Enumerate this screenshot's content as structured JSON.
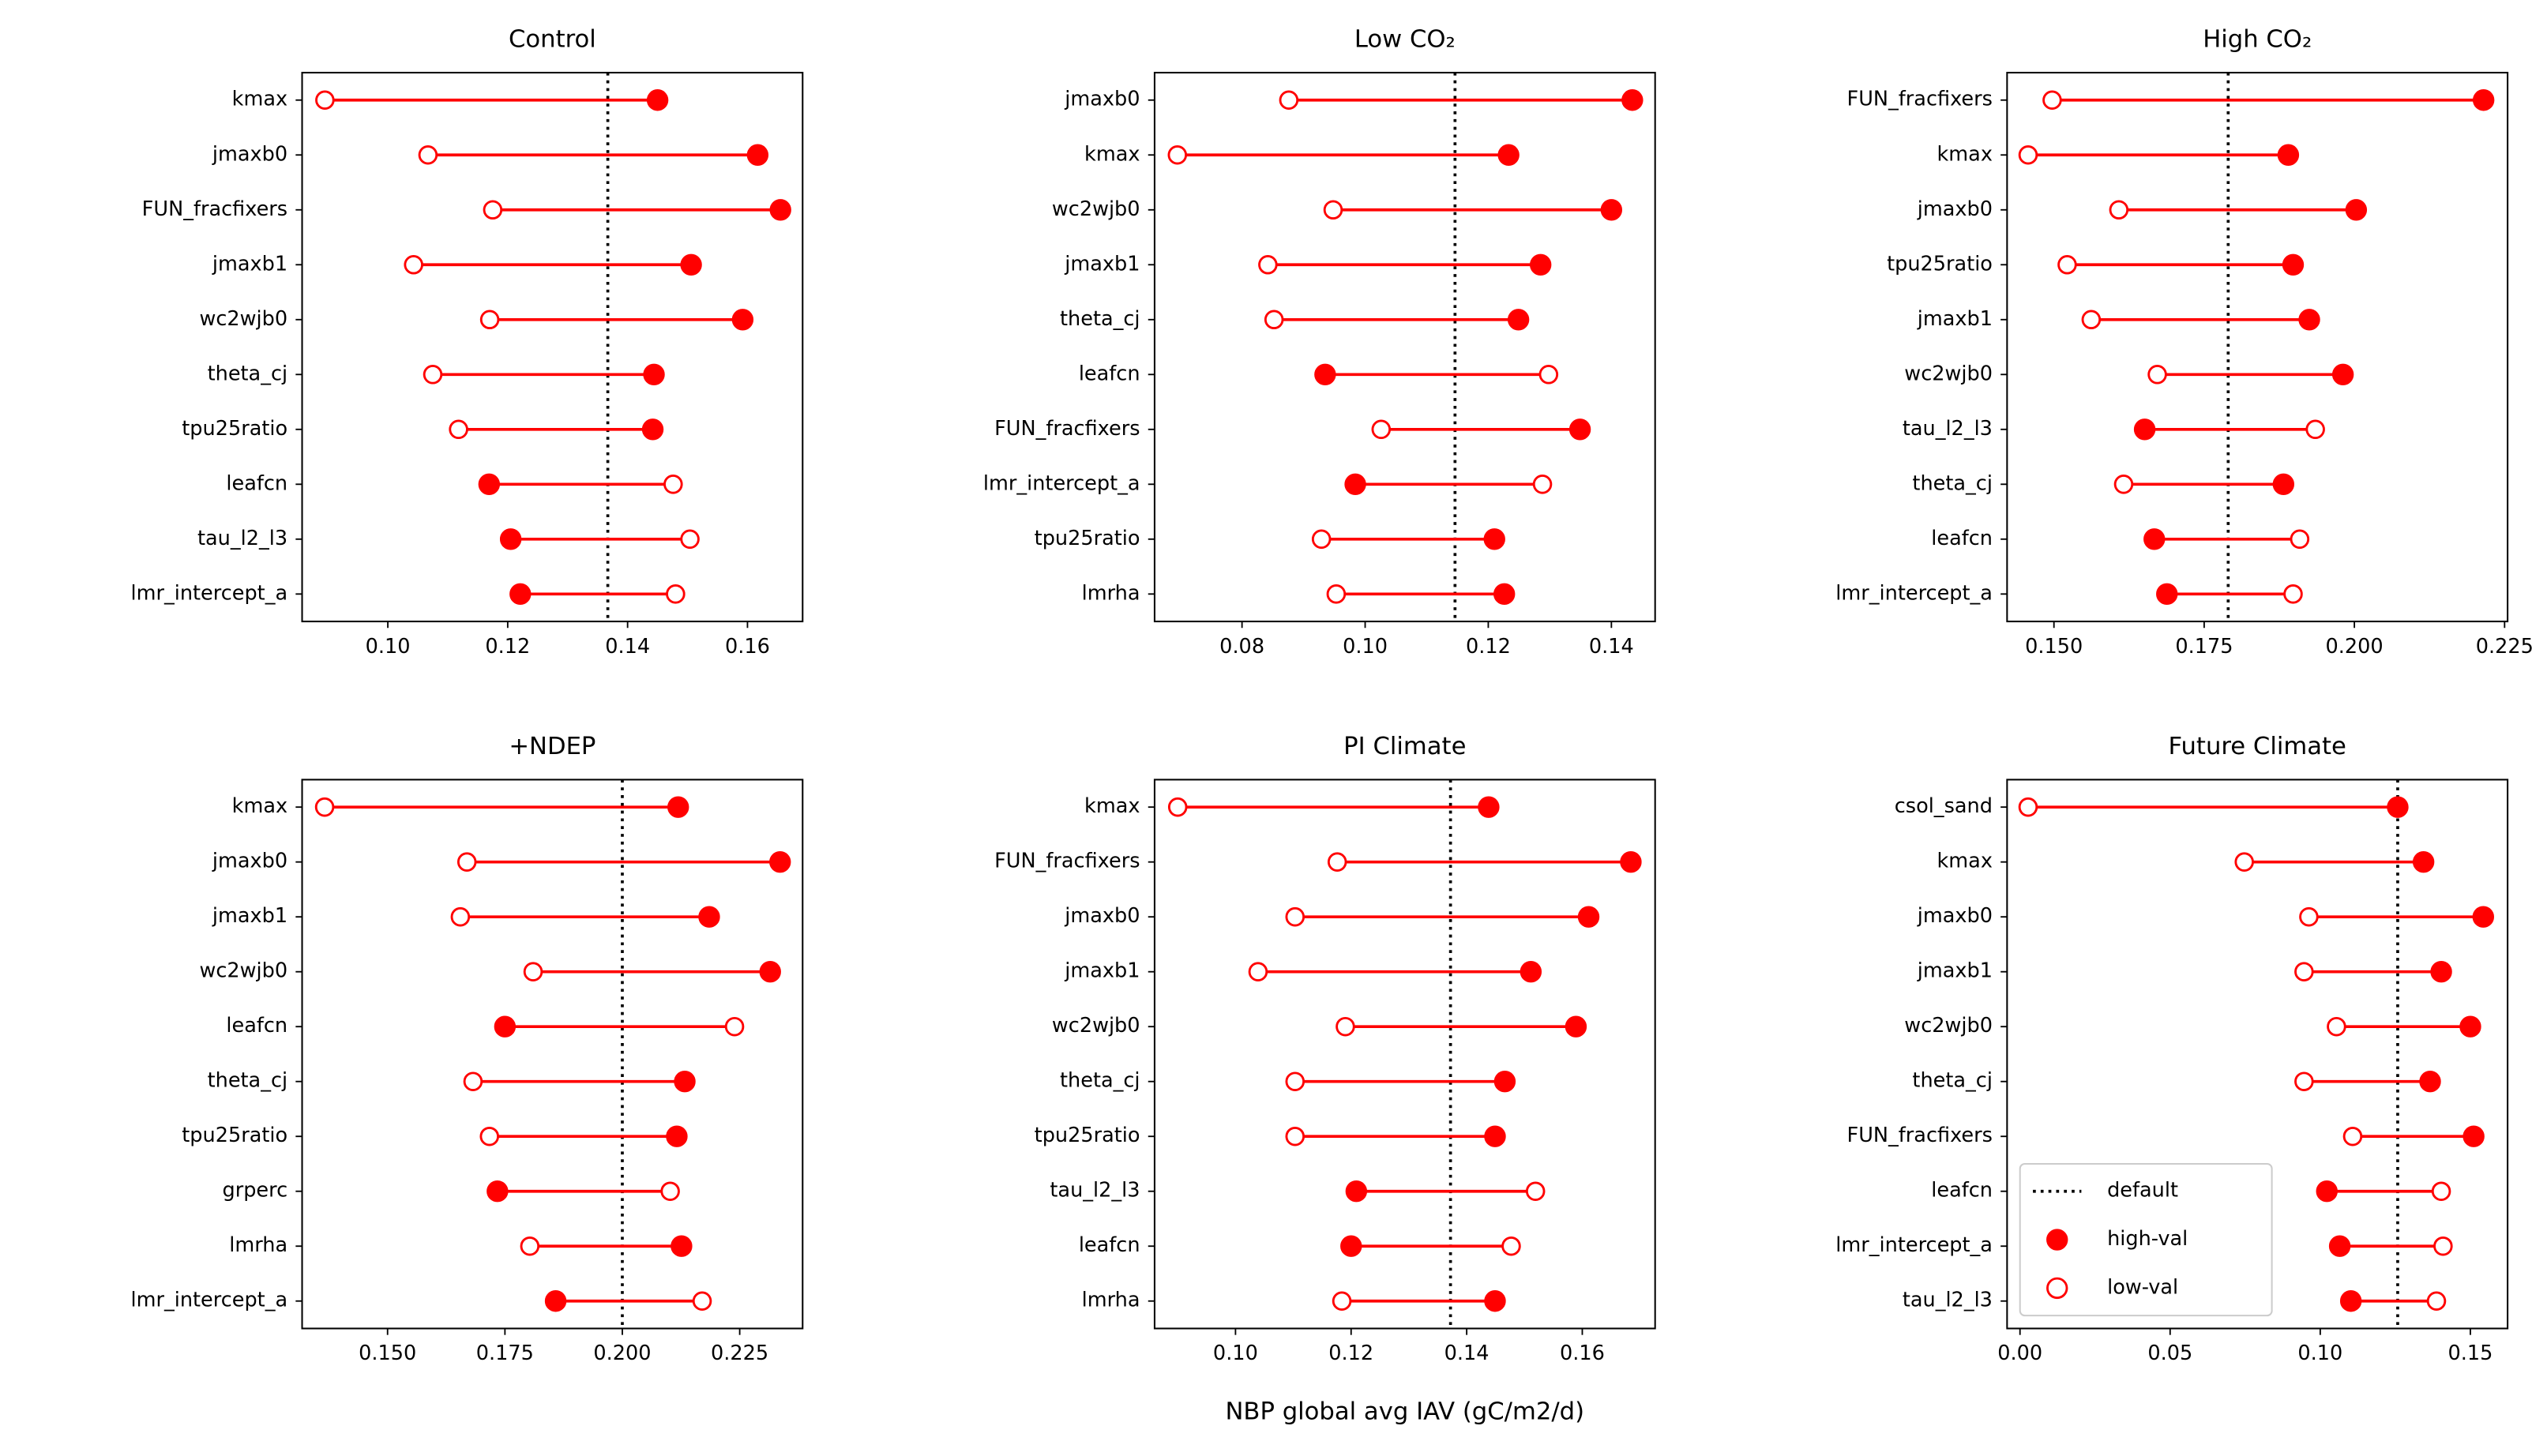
{
  "chart_data": [
    {
      "type": "dumbbell",
      "title": "Control",
      "categories": [
        "kmax",
        "jmaxb0",
        "FUN_fracfixers",
        "jmaxb1",
        "wc2wjb0",
        "theta_cj",
        "tpu25ratio",
        "leafcn",
        "tau_l2_l3",
        "lmr_intercept_a"
      ],
      "series": [
        {
          "name": "high-val",
          "color": "#ff0000",
          "filled": true,
          "values": [
            0.145,
            0.1617,
            0.1655,
            0.1506,
            0.1592,
            0.1444,
            0.1442,
            0.1169,
            0.1205,
            0.1221
          ]
        },
        {
          "name": "low-val",
          "color": "#ff0000",
          "filled": false,
          "values": [
            0.0895,
            0.1067,
            0.1175,
            0.1043,
            0.117,
            0.1075,
            0.1118,
            0.1476,
            0.1504,
            0.148
          ]
        }
      ],
      "default": {
        "name": "default",
        "value": 0.1367,
        "color": "#000000"
      },
      "xlim": [
        0.0857,
        0.1692
      ],
      "xticks": [
        {
          "value": 0.1,
          "label": "0.10"
        },
        {
          "value": 0.12,
          "label": "0.12"
        },
        {
          "value": 0.14,
          "label": "0.14"
        },
        {
          "value": 0.16,
          "label": "0.16"
        }
      ]
    },
    {
      "type": "dumbbell",
      "title": "Low CO₂",
      "categories": [
        "jmaxb0",
        "kmax",
        "wc2wjb0",
        "jmaxb1",
        "theta_cj",
        "leafcn",
        "FUN_fracfixers",
        "lmr_intercept_a",
        "tpu25ratio",
        "lmrha"
      ],
      "series": [
        {
          "name": "high-val",
          "color": "#ff0000",
          "filled": true,
          "values": [
            0.1434,
            0.1233,
            0.14,
            0.1285,
            0.1249,
            0.0935,
            0.1349,
            0.0984,
            0.121,
            0.1226
          ]
        },
        {
          "name": "low-val",
          "color": "#ff0000",
          "filled": false,
          "values": [
            0.0876,
            0.0695,
            0.0948,
            0.0842,
            0.0852,
            0.1298,
            0.1026,
            0.1288,
            0.0929,
            0.0953
          ]
        }
      ],
      "default": {
        "name": "default",
        "value": 0.1146,
        "color": "#000000"
      },
      "xlim": [
        0.0658,
        0.1471
      ],
      "xticks": [
        {
          "value": 0.08,
          "label": "0.08"
        },
        {
          "value": 0.1,
          "label": "0.10"
        },
        {
          "value": 0.12,
          "label": "0.12"
        },
        {
          "value": 0.14,
          "label": "0.14"
        }
      ]
    },
    {
      "type": "dumbbell",
      "title": "High CO₂",
      "categories": [
        "FUN_fracfixers",
        "kmax",
        "jmaxb0",
        "tpu25ratio",
        "jmaxb1",
        "wc2wjb0",
        "tau_l2_l3",
        "theta_cj",
        "leafcn",
        "lmr_intercept_a"
      ],
      "series": [
        {
          "name": "high-val",
          "color": "#ff0000",
          "filled": true,
          "values": [
            0.2215,
            0.189,
            0.2003,
            0.1898,
            0.1925,
            0.1981,
            0.1651,
            0.1882,
            0.1667,
            0.1688
          ]
        },
        {
          "name": "low-val",
          "color": "#ff0000",
          "filled": false,
          "values": [
            0.1497,
            0.1457,
            0.1608,
            0.1522,
            0.1562,
            0.1672,
            0.1935,
            0.1616,
            0.1909,
            0.1898
          ]
        }
      ],
      "default": {
        "name": "default",
        "value": 0.179,
        "color": "#000000"
      },
      "xlim": [
        0.1422,
        0.2255
      ],
      "xticks": [
        {
          "value": 0.15,
          "label": "0.150"
        },
        {
          "value": 0.175,
          "label": "0.175"
        },
        {
          "value": 0.2,
          "label": "0.200"
        },
        {
          "value": 0.225,
          "label": "0.225"
        }
      ]
    },
    {
      "type": "dumbbell",
      "title": "+NDEP",
      "categories": [
        "kmax",
        "jmaxb0",
        "jmaxb1",
        "wc2wjb0",
        "leafcn",
        "theta_cj",
        "tpu25ratio",
        "grperc",
        "lmrha",
        "lmr_intercept_a"
      ],
      "series": [
        {
          "name": "high-val",
          "color": "#ff0000",
          "filled": true,
          "values": [
            0.2119,
            0.2336,
            0.2185,
            0.2315,
            0.175,
            0.2133,
            0.2116,
            0.1734,
            0.2126,
            0.1858
          ]
        },
        {
          "name": "low-val",
          "color": "#ff0000",
          "filled": false,
          "values": [
            0.1366,
            0.1669,
            0.1655,
            0.181,
            0.2239,
            0.1682,
            0.1717,
            0.2102,
            0.1803,
            0.217
          ]
        }
      ],
      "default": {
        "name": "default",
        "value": 0.2,
        "color": "#000000"
      },
      "xlim": [
        0.1318,
        0.2384
      ],
      "xticks": [
        {
          "value": 0.15,
          "label": "0.150"
        },
        {
          "value": 0.175,
          "label": "0.175"
        },
        {
          "value": 0.2,
          "label": "0.200"
        },
        {
          "value": 0.225,
          "label": "0.225"
        }
      ]
    },
    {
      "type": "dumbbell",
      "title": "PI Climate",
      "xlabel": "NBP global avg IAV (gC/m2/d)",
      "categories": [
        "kmax",
        "FUN_fracfixers",
        "jmaxb0",
        "jmaxb1",
        "wc2wjb0",
        "theta_cj",
        "tpu25ratio",
        "tau_l2_l3",
        "leafcn",
        "lmrha"
      ],
      "series": [
        {
          "name": "high-val",
          "color": "#ff0000",
          "filled": true,
          "values": [
            0.1438,
            0.1684,
            0.1611,
            0.1511,
            0.1589,
            0.1466,
            0.1449,
            0.1209,
            0.12,
            0.1449
          ]
        },
        {
          "name": "low-val",
          "color": "#ff0000",
          "filled": false,
          "values": [
            0.09,
            0.1176,
            0.1103,
            0.1039,
            0.119,
            0.1103,
            0.1103,
            0.1519,
            0.1477,
            0.1184
          ]
        }
      ],
      "default": {
        "name": "default",
        "value": 0.1372,
        "color": "#000000"
      },
      "xlim": [
        0.086,
        0.1726
      ],
      "xticks": [
        {
          "value": 0.1,
          "label": "0.10"
        },
        {
          "value": 0.12,
          "label": "0.12"
        },
        {
          "value": 0.14,
          "label": "0.14"
        },
        {
          "value": 0.16,
          "label": "0.16"
        }
      ]
    },
    {
      "type": "dumbbell",
      "title": "Future Climate",
      "legend": "lower left",
      "categories": [
        "csol_sand",
        "kmax",
        "jmaxb0",
        "jmaxb1",
        "wc2wjb0",
        "theta_cj",
        "FUN_fracfixers",
        "leafcn",
        "lmr_intercept_a",
        "tau_l2_l3"
      ],
      "series": [
        {
          "name": "high-val",
          "color": "#ff0000",
          "filled": true,
          "values": [
            0.1258,
            0.1344,
            0.1543,
            0.1403,
            0.15,
            0.1366,
            0.1511,
            0.1022,
            0.1065,
            0.1102
          ]
        },
        {
          "name": "low-val",
          "color": "#ff0000",
          "filled": false,
          "values": [
            0.0027,
            0.0747,
            0.0962,
            0.0946,
            0.1054,
            0.0946,
            0.1108,
            0.1403,
            0.1409,
            0.1387
          ]
        }
      ],
      "default": {
        "name": "default",
        "value": 0.1258,
        "color": "#000000"
      },
      "xlim": [
        -0.0043,
        0.1624
      ],
      "xticks": [
        {
          "value": 0,
          "label": "0.00"
        },
        {
          "value": 0.05,
          "label": "0.05"
        },
        {
          "value": 0.1,
          "label": "0.10"
        },
        {
          "value": 0.15,
          "label": "0.15"
        }
      ]
    }
  ]
}
